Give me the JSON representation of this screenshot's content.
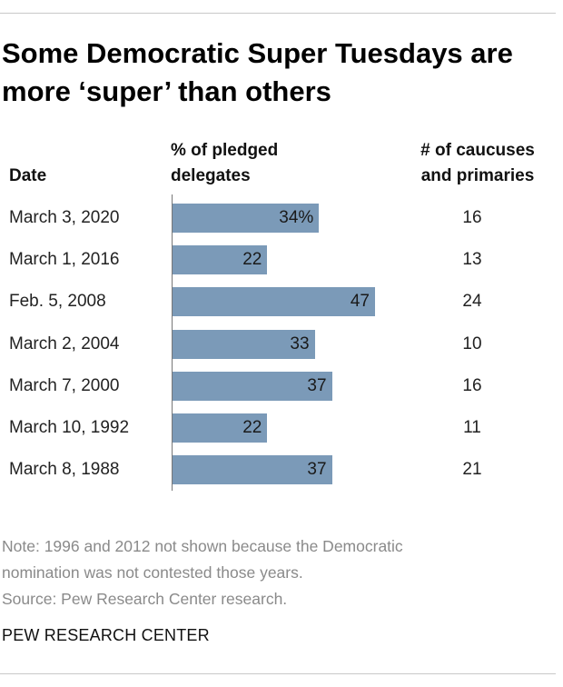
{
  "title": "Some Democratic Super Tuesdays are more ‘super’ than others",
  "headers": {
    "date": "Date",
    "pct_line1": "% of pledged",
    "pct_line2": "delegates",
    "count_line1": "# of caucuses",
    "count_line2": "and primaries"
  },
  "chart_data": {
    "type": "bar",
    "orientation": "horizontal",
    "title": "Some Democratic Super Tuesdays are more ‘super’ than others",
    "xlabel": "% of pledged delegates",
    "ylabel": "Date",
    "categories": [
      "March 3, 2020",
      "March 1, 2016",
      "Feb. 5, 2008",
      "March 2, 2004",
      "March 7, 2000",
      "March 10, 1992",
      "March 8, 1988"
    ],
    "values": [
      34,
      22,
      47,
      33,
      37,
      22,
      37
    ],
    "value_labels": [
      "34%",
      "22",
      "47",
      "33",
      "37",
      "22",
      "37"
    ],
    "caucuses_and_primaries": [
      16,
      13,
      24,
      10,
      16,
      11,
      21
    ],
    "xlim": [
      0,
      47
    ],
    "grid": false,
    "bar_color": "#7b9ab8"
  },
  "note_line1": "Note: 1996 and 2012 not shown because the Democratic",
  "note_line2": "nomination was not contested those years.",
  "source": "Source: Pew Research Center research.",
  "brand": "PEW RESEARCH CENTER"
}
